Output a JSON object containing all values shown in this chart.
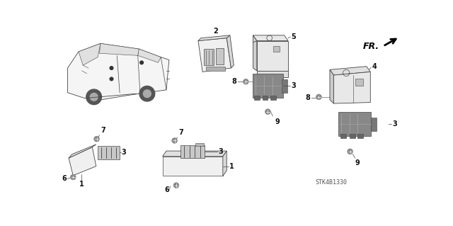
{
  "bg_color": "#ffffff",
  "diagram_code": "STK4B1330",
  "fr_label": "FR.",
  "fig_width": 6.4,
  "fig_height": 3.19,
  "dpi": 100,
  "line_color": "#444444",
  "text_color": "#222222",
  "font_size_label": 7,
  "font_size_code": 6,
  "gray_fill": "#d8d8d8",
  "light_fill": "#f0f0f0",
  "white_fill": "#ffffff"
}
